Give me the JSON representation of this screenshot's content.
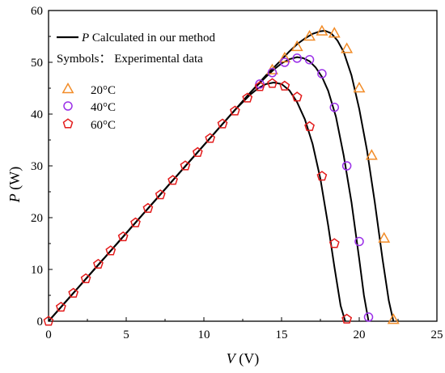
{
  "chart_data": {
    "type": "scatter",
    "xlabel": {
      "symbol": "V",
      "unit": " (V)"
    },
    "ylabel": {
      "symbol": "P",
      "unit": " (W)"
    },
    "xlim": [
      0,
      25
    ],
    "ylim": [
      0,
      60
    ],
    "xticks": [
      0,
      5,
      10,
      15,
      20,
      25
    ],
    "yticks": [
      0,
      10,
      20,
      30,
      40,
      50,
      60
    ],
    "grid": false,
    "legend": {
      "placement": "top-left",
      "line_entry": {
        "symbol": "P",
        "text": " Calculated in our method"
      },
      "symbols_title": "Symbols：  Experimental data"
    },
    "line_series": [
      {
        "name": "20°C",
        "color": "#000000",
        "x": [
          0,
          1,
          2,
          3,
          4,
          5,
          6,
          7,
          8,
          9,
          10,
          11,
          12,
          13,
          14,
          15,
          15.5,
          16,
          16.5,
          17,
          17.5,
          17.8,
          18.2,
          18.6,
          19,
          19.5,
          20,
          20.5,
          21,
          21.5,
          21.9,
          22.2
        ],
        "values": [
          0,
          3.4,
          6.8,
          10.2,
          13.6,
          17,
          20.4,
          23.8,
          27.2,
          30.6,
          34,
          37.4,
          40.8,
          44.2,
          47.5,
          50.5,
          52.1,
          53.5,
          54.6,
          55.5,
          56,
          56.1,
          55.6,
          54.2,
          52,
          47.5,
          41,
          33,
          23,
          12,
          4,
          0
        ]
      },
      {
        "name": "40°C",
        "color": "#000000",
        "x": [
          0,
          1,
          2,
          3,
          4,
          5,
          6,
          7,
          8,
          9,
          10,
          11,
          12,
          13,
          14,
          14.5,
          15,
          15.5,
          16,
          16.4,
          16.8,
          17.2,
          17.6,
          18,
          18.5,
          19,
          19.5,
          20,
          20.3,
          20.6
        ],
        "values": [
          0,
          3.4,
          6.8,
          10.2,
          13.6,
          17,
          20.4,
          23.8,
          27.2,
          30.6,
          34,
          37.4,
          40.8,
          44.2,
          47.2,
          48.6,
          49.8,
          50.6,
          51,
          50.8,
          50.2,
          49,
          47.2,
          44.5,
          39.5,
          32,
          23,
          12,
          5,
          0
        ]
      },
      {
        "name": "60°C",
        "color": "#000000",
        "x": [
          0,
          1,
          2,
          3,
          4,
          5,
          6,
          7,
          8,
          9,
          10,
          11,
          12,
          13,
          13.5,
          14,
          14.5,
          15,
          15.5,
          16,
          16.5,
          17,
          17.5,
          18,
          18.4,
          18.8,
          19.1
        ],
        "values": [
          0,
          3.4,
          6.8,
          10.2,
          13.6,
          17,
          20.4,
          23.8,
          27.2,
          30.6,
          34,
          37.4,
          40.8,
          43.8,
          45,
          45.8,
          46.1,
          45.8,
          44.6,
          42.3,
          39,
          34.2,
          27.5,
          18.5,
          10.5,
          3,
          0
        ]
      }
    ],
    "scatter_series": [
      {
        "name": "20°C",
        "marker": "triangle",
        "color": "#f28c28",
        "x": [
          14.4,
          15.2,
          16,
          16.8,
          17.6,
          18.4,
          19.2,
          20,
          20.8,
          21.6,
          22.2
        ],
        "values": [
          48.5,
          50.8,
          53,
          55,
          56,
          55.6,
          52.6,
          45,
          32,
          16,
          0.3
        ]
      },
      {
        "name": "40°C",
        "marker": "circle",
        "color": "#9b30e8",
        "x": [
          13.6,
          14.4,
          15.2,
          16,
          16.8,
          17.6,
          18.4,
          19.2,
          20,
          20.6
        ],
        "values": [
          45.8,
          48,
          50,
          50.8,
          50.5,
          47.8,
          41.3,
          30,
          15.4,
          0.8
        ]
      },
      {
        "name": "60°C",
        "marker": "pentagon",
        "color": "#e31b1b",
        "x": [
          0,
          0.8,
          1.6,
          2.4,
          3.2,
          4,
          4.8,
          5.6,
          6.4,
          7.2,
          8,
          8.8,
          9.6,
          10.4,
          11.2,
          12,
          12.8,
          13.6,
          14.4,
          15.2,
          16,
          16.8,
          17.6,
          18.4,
          19.2
        ],
        "values": [
          0,
          2.7,
          5.4,
          8.2,
          11,
          13.6,
          16.3,
          19,
          21.8,
          24.4,
          27.2,
          30,
          32.6,
          35.3,
          38.1,
          40.6,
          43.1,
          45.3,
          45.9,
          45.4,
          43.3,
          37.6,
          28,
          15,
          0.4
        ]
      }
    ]
  }
}
